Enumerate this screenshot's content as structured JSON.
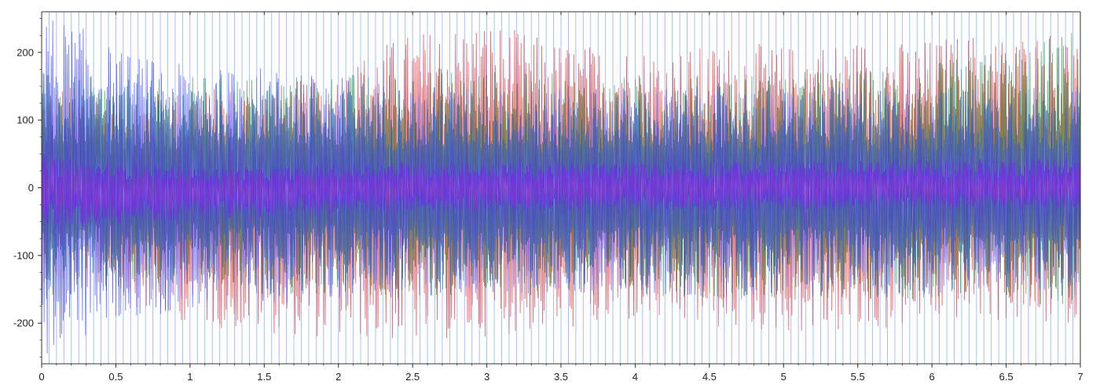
{
  "chart_data": {
    "type": "line",
    "title": "",
    "xlabel": "",
    "ylabel": "",
    "xlim": [
      0,
      7
    ],
    "ylim": [
      -260,
      260
    ],
    "x_ticks": [
      0,
      0.5,
      1,
      1.5,
      2,
      2.5,
      3,
      3.5,
      4,
      4.5,
      5,
      5.5,
      6,
      6.5,
      7
    ],
    "x_tick_labels": [
      "0",
      "0.5",
      "1",
      "1.5",
      "2",
      "2.5",
      "3",
      "3.5",
      "4",
      "4.5",
      "5",
      "5.5",
      "6",
      "6.5",
      "7"
    ],
    "y_ticks": [
      -200,
      -100,
      0,
      100,
      200
    ],
    "y_tick_labels": [
      "-200",
      "-100",
      "0",
      "100",
      "200"
    ],
    "grid": false,
    "legend": "none",
    "series": [
      {
        "color": "#e31a1c",
        "x": [
          0,
          0.25,
          0.5,
          0.75,
          1,
          1.25,
          1.5,
          1.75,
          2,
          2.25,
          2.5,
          2.75,
          3,
          3.25,
          3.5,
          3.75,
          4,
          4.25,
          4.5,
          4.75,
          5,
          5.25,
          5.5,
          5.75,
          6,
          6.25,
          6.5,
          6.75,
          7
        ],
        "upper": [
          150,
          150,
          140,
          140,
          145,
          150,
          150,
          160,
          170,
          210,
          230,
          240,
          250,
          230,
          215,
          210,
          210,
          205,
          210,
          215,
          210,
          215,
          220,
          215,
          220,
          230,
          225,
          235,
          230
        ],
        "lower": [
          -140,
          -150,
          -160,
          -190,
          -200,
          -210,
          -215,
          -220,
          -225,
          -225,
          -230,
          -225,
          -220,
          -215,
          -210,
          -210,
          -200,
          -205,
          -210,
          -215,
          -215,
          -215,
          -220,
          -210,
          -200,
          -195,
          -200,
          -205,
          -200
        ]
      },
      {
        "color": "#1f8f2e",
        "x": [
          0,
          0.25,
          0.5,
          0.75,
          1,
          1.25,
          1.5,
          1.75,
          2,
          2.25,
          2.5,
          2.75,
          3,
          3.25,
          3.5,
          3.75,
          4,
          4.25,
          4.5,
          4.75,
          5,
          5.25,
          5.5,
          5.75,
          6,
          6.25,
          6.5,
          6.75,
          7
        ],
        "upper": [
          170,
          165,
          160,
          160,
          165,
          170,
          170,
          170,
          170,
          170,
          175,
          180,
          175,
          170,
          170,
          165,
          165,
          165,
          170,
          170,
          170,
          175,
          175,
          180,
          185,
          195,
          205,
          220,
          240
        ],
        "lower": [
          -165,
          -160,
          -155,
          -150,
          -150,
          -155,
          -160,
          -160,
          -160,
          -165,
          -165,
          -165,
          -160,
          -160,
          -155,
          -155,
          -160,
          -160,
          -165,
          -165,
          -165,
          -165,
          -165,
          -165,
          -165,
          -170,
          -170,
          -175,
          -175
        ]
      },
      {
        "color": "#3333ff",
        "x": [
          0,
          0.25,
          0.5,
          0.75,
          1,
          1.25,
          1.5,
          1.75,
          2,
          2.25,
          2.5,
          2.75,
          3,
          3.25,
          3.5,
          3.75,
          4,
          4.25,
          4.5,
          4.75,
          5,
          5.25,
          5.5,
          5.75,
          6,
          6.25,
          6.5,
          6.75,
          7
        ],
        "upper": [
          260,
          240,
          205,
          190,
          180,
          175,
          180,
          170,
          165,
          160,
          150,
          150,
          150,
          145,
          145,
          150,
          150,
          150,
          150,
          150,
          150,
          150,
          150,
          150,
          150,
          150,
          150,
          150,
          150
        ],
        "lower": [
          -255,
          -230,
          -200,
          -190,
          -180,
          -175,
          -170,
          -170,
          -165,
          -160,
          -160,
          -160,
          -160,
          -160,
          -160,
          -160,
          -160,
          -160,
          -160,
          -160,
          -160,
          -160,
          -160,
          -160,
          -160,
          -160,
          -160,
          -160,
          -160
        ]
      },
      {
        "color": "#8a2be2",
        "x": [
          0,
          0.25,
          0.5,
          0.75,
          1,
          1.25,
          1.5,
          1.75,
          2,
          2.25,
          2.5,
          2.75,
          3,
          3.25,
          3.5,
          3.75,
          4,
          4.25,
          4.5,
          4.75,
          5,
          5.25,
          5.5,
          5.75,
          6,
          6.25,
          6.5,
          6.75,
          7
        ],
        "upper": [
          50,
          40,
          35,
          35,
          30,
          30,
          30,
          32,
          35,
          38,
          40,
          40,
          40,
          38,
          38,
          38,
          38,
          40,
          40,
          40,
          40,
          40,
          40,
          42,
          42,
          44,
          45,
          46,
          48
        ],
        "lower": [
          -60,
          -60,
          -55,
          -50,
          -50,
          -45,
          -45,
          -42,
          -40,
          -38,
          -36,
          -35,
          -35,
          -34,
          -34,
          -34,
          -34,
          -34,
          -33,
          -32,
          -32,
          -32,
          -31,
          -30,
          -30,
          -30,
          -30,
          -30,
          -30
        ]
      }
    ]
  }
}
